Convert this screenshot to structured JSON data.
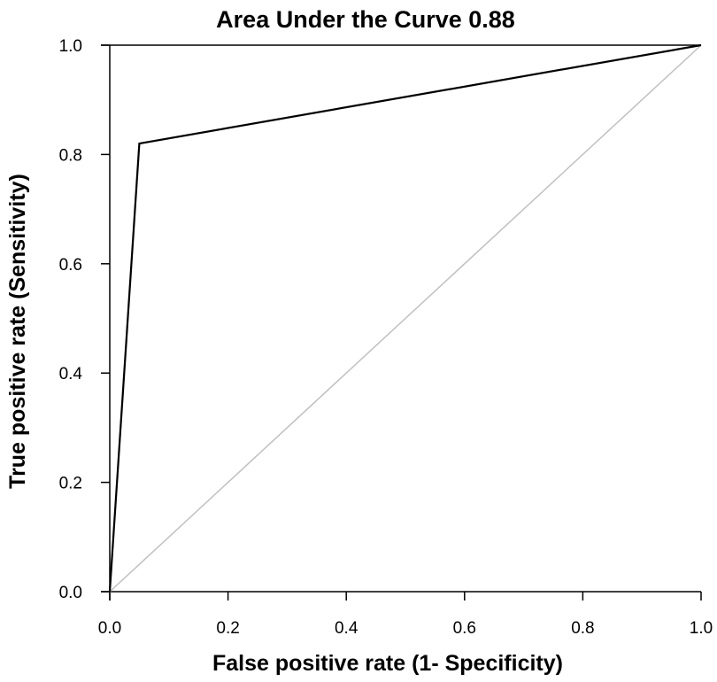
{
  "chart_data": {
    "type": "line",
    "title": "Area Under the Curve 0.88",
    "xlabel": "False positive rate (1- Specificity)",
    "ylabel": "True positive rate (Sensitivity)",
    "xlim": [
      0,
      1
    ],
    "ylim": [
      0,
      1
    ],
    "x_ticks": [
      "0.0",
      "0.2",
      "0.4",
      "0.6",
      "0.8",
      "1.0"
    ],
    "y_ticks": [
      "0.0",
      "0.2",
      "0.4",
      "0.6",
      "0.8",
      "1.0"
    ],
    "grid": false,
    "series": [
      {
        "role": "roc-curve",
        "color": "#000000",
        "points": [
          [
            0.0,
            0.0
          ],
          [
            0.05,
            0.82
          ],
          [
            1.0,
            1.0
          ]
        ]
      },
      {
        "role": "reference-diagonal",
        "color": "#c0c0c0",
        "points": [
          [
            0.0,
            0.0
          ],
          [
            1.0,
            1.0
          ]
        ]
      }
    ]
  }
}
